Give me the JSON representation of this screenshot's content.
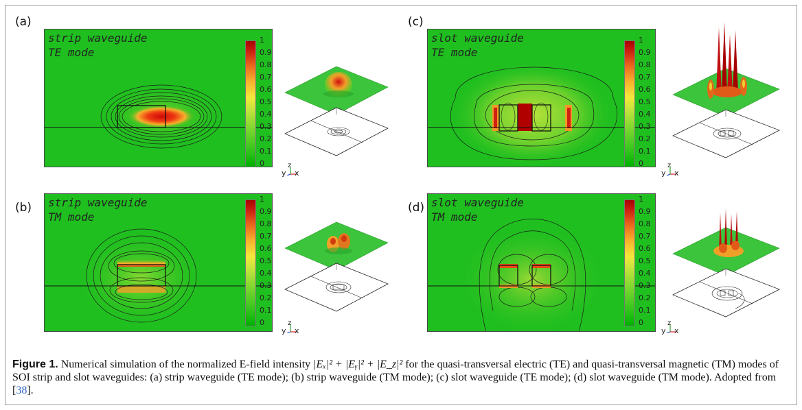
{
  "panels": [
    {
      "letter": "(a)",
      "title_line1": "strip waveguide",
      "title_line2": "TE mode"
    },
    {
      "letter": "(b)",
      "title_line1": "strip waveguide",
      "title_line2": "TM mode"
    },
    {
      "letter": "(c)",
      "title_line1": "slot waveguide",
      "title_line2": "TE mode"
    },
    {
      "letter": "(d)",
      "title_line1": "slot waveguide",
      "title_line2": "TM mode"
    }
  ],
  "colorbar_ticks": [
    "1",
    "0.9",
    "0.8",
    "0.7",
    "0.6",
    "0.5",
    "0.4",
    "0.3",
    "0.2",
    "0.1",
    "0"
  ],
  "axes_labels": {
    "y": "y",
    "z": "z",
    "x": "x"
  },
  "caption": {
    "label": "Figure 1.",
    "text_before": " Numerical simulation of the normalized E-field intensity ",
    "formula": "|Eₓ|² + |Eᵧ|² + |E_z|²",
    "text_after": " for the quasi-transversal electric (TE) and quasi-transversal magnetic (TM) modes of SOI strip and slot waveguides: (a) strip waveguide (TE mode); (b) strip waveguide (TM mode); (c) slot waveguide (TE mode); (d) slot waveguide (TM mode). Adopted from [",
    "ref": "38",
    "text_end": "]."
  },
  "colors": {
    "field_green": "#1fbf1f",
    "hot": "#c40000",
    "frame": "#9a9a9a",
    "ref": "#2b63c7"
  }
}
